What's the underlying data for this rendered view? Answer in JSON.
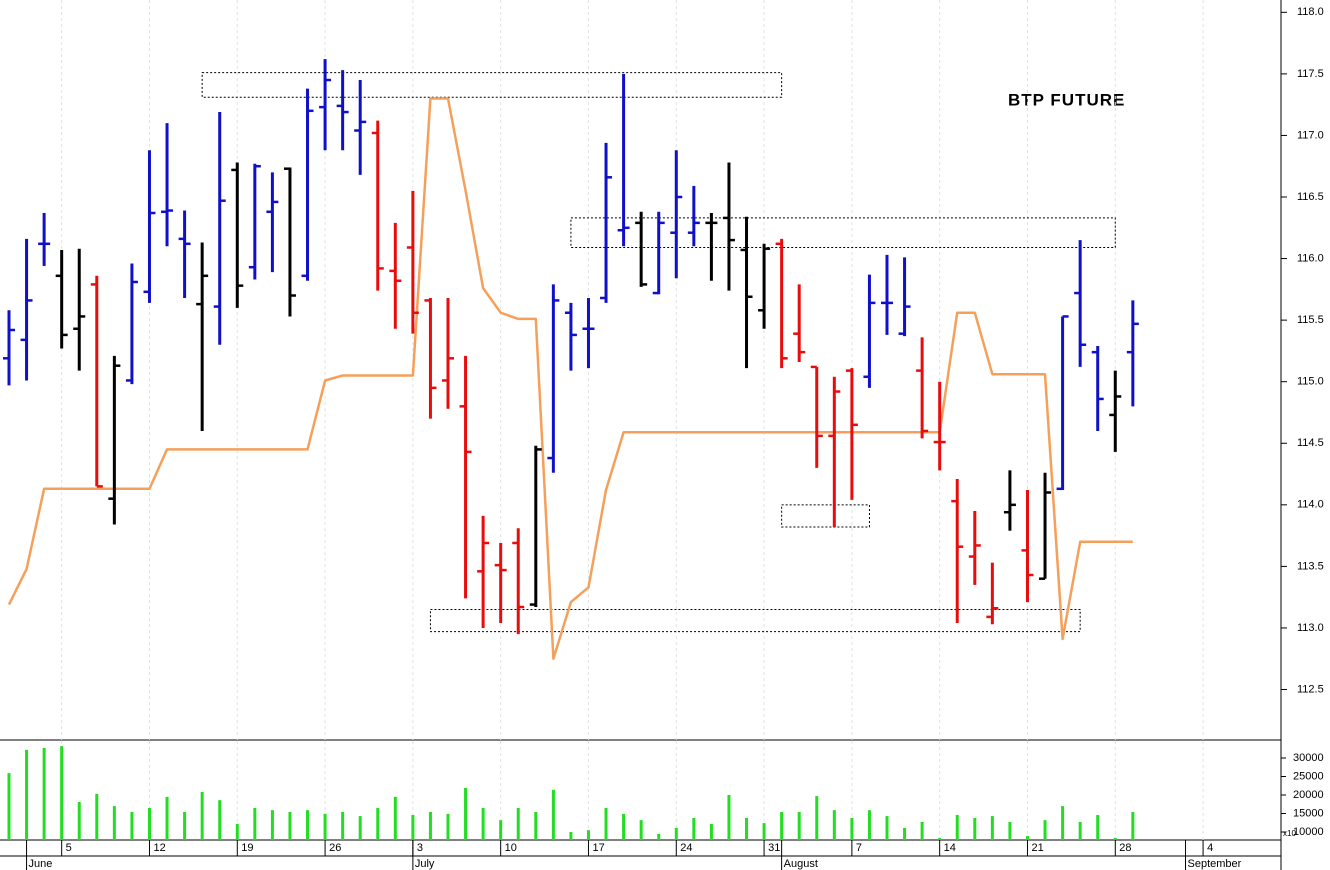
{
  "chart_data": {
    "type": "ohlc",
    "title": "BTP FUTURE",
    "categories": [
      null,
      null,
      null,
      "5",
      null,
      null,
      null,
      null,
      "12",
      null,
      null,
      null,
      null,
      "19",
      null,
      null,
      null,
      null,
      "26",
      null,
      null,
      null,
      null,
      "3",
      null,
      null,
      null,
      null,
      "10",
      null,
      null,
      null,
      null,
      "17",
      null,
      null,
      null,
      null,
      "24",
      null,
      null,
      null,
      null,
      "31",
      null,
      null,
      null,
      null,
      "7",
      null,
      null,
      null,
      null,
      "14",
      null,
      null,
      null,
      null,
      "21",
      null,
      null,
      null,
      null,
      "28",
      null,
      null,
      null,
      null,
      "4"
    ],
    "months": [
      null,
      "June",
      null,
      null,
      null,
      null,
      null,
      null,
      null,
      null,
      null,
      null,
      null,
      null,
      null,
      null,
      null,
      null,
      null,
      null,
      null,
      null,
      null,
      "July",
      null,
      null,
      null,
      null,
      null,
      null,
      null,
      null,
      null,
      null,
      null,
      null,
      null,
      null,
      null,
      null,
      null,
      null,
      null,
      null,
      "August",
      null,
      null,
      null,
      null,
      null,
      null,
      null,
      null,
      null,
      null,
      null,
      null,
      null,
      null,
      null,
      null,
      null,
      null,
      null,
      null,
      null,
      null,
      "September",
      null
    ],
    "ohlc": {
      "open": [
        115.19,
        115.34,
        116.12,
        115.86,
        115.43,
        115.79,
        114.05,
        115.01,
        115.73,
        116.38,
        116.16,
        115.63,
        115.61,
        116.72,
        115.93,
        116.38,
        116.73,
        115.86,
        117.23,
        117.24,
        117.04,
        117.02,
        115.9,
        116.09,
        115.66,
        115.01,
        114.8,
        113.46,
        113.51,
        113.69,
        113.19,
        114.38,
        115.56,
        115.43,
        115.68,
        116.23,
        116.29,
        115.72,
        116.21,
        116.21,
        116.29,
        116.33,
        116.07,
        115.58,
        116.12,
        115.39,
        115.12,
        114.56,
        115.09,
        115.04,
        115.64,
        115.39,
        115.09,
        114.51,
        114.03,
        113.58,
        113.09,
        113.94,
        113.63,
        113.4,
        114.13,
        115.72,
        115.24,
        114.73,
        115.24,
        null,
        null,
        null,
        null
      ],
      "high": [
        115.58,
        116.16,
        116.37,
        116.07,
        116.08,
        115.86,
        115.21,
        115.96,
        116.88,
        117.1,
        116.39,
        116.13,
        117.19,
        116.78,
        116.77,
        116.7,
        116.74,
        117.38,
        117.62,
        117.53,
        117.45,
        117.12,
        116.29,
        116.55,
        115.68,
        115.68,
        115.21,
        113.91,
        113.69,
        113.81,
        114.48,
        115.79,
        115.64,
        115.68,
        116.94,
        117.5,
        116.38,
        116.38,
        116.88,
        116.59,
        116.37,
        116.78,
        116.34,
        116.12,
        116.16,
        115.79,
        115.12,
        115.04,
        115.11,
        115.87,
        116.03,
        116.01,
        115.36,
        115.0,
        114.21,
        113.95,
        113.53,
        114.28,
        114.12,
        114.26,
        115.53,
        116.15,
        115.29,
        115.09,
        115.66,
        null,
        null,
        null,
        null
      ],
      "low": [
        114.97,
        115.01,
        115.94,
        115.27,
        115.09,
        114.15,
        113.84,
        114.98,
        115.64,
        116.1,
        115.68,
        114.6,
        115.3,
        115.6,
        115.83,
        115.89,
        115.53,
        115.82,
        116.88,
        116.88,
        116.68,
        115.74,
        115.43,
        115.39,
        114.7,
        114.78,
        113.24,
        113.0,
        113.04,
        112.95,
        113.17,
        114.26,
        115.09,
        115.11,
        115.64,
        116.1,
        115.77,
        115.71,
        115.84,
        116.1,
        115.82,
        115.74,
        115.11,
        115.43,
        115.11,
        115.16,
        114.3,
        113.82,
        114.04,
        114.95,
        115.38,
        115.37,
        114.54,
        114.28,
        113.04,
        113.35,
        113.03,
        113.79,
        113.21,
        113.4,
        114.12,
        115.12,
        114.6,
        114.43,
        114.8,
        null,
        null,
        null,
        null
      ],
      "close": [
        115.42,
        115.66,
        116.12,
        115.38,
        115.53,
        114.15,
        115.13,
        115.81,
        116.37,
        116.39,
        116.12,
        115.86,
        116.47,
        115.78,
        116.75,
        116.46,
        115.7,
        117.2,
        117.45,
        117.19,
        117.11,
        115.92,
        115.82,
        115.56,
        114.95,
        115.19,
        114.43,
        113.69,
        113.47,
        113.17,
        114.45,
        115.66,
        115.38,
        115.43,
        116.66,
        116.25,
        115.79,
        116.29,
        116.5,
        116.29,
        116.29,
        116.15,
        115.69,
        116.08,
        115.19,
        115.24,
        114.56,
        114.92,
        114.65,
        115.64,
        115.64,
        115.61,
        114.6,
        114.51,
        113.66,
        113.67,
        113.16,
        114.0,
        113.43,
        114.1,
        115.53,
        115.3,
        114.86,
        114.88,
        115.47,
        null,
        null,
        null,
        null
      ],
      "colors": [
        "#1010c8",
        "#1010c8",
        "#1010c8",
        "#000000",
        "#000000",
        "#e80c0c",
        "#000000",
        "#1010c8",
        "#1010c8",
        "#1010c8",
        "#1010c8",
        "#000000",
        "#1010c8",
        "#000000",
        "#1010c8",
        "#1010c8",
        "#000000",
        "#1010c8",
        "#1010c8",
        "#1010c8",
        "#1010c8",
        "#e80c0c",
        "#e80c0c",
        "#e80c0c",
        "#e80c0c",
        "#e80c0c",
        "#e80c0c",
        "#e80c0c",
        "#e80c0c",
        "#e80c0c",
        "#000000",
        "#1010c8",
        "#1010c8",
        "#1010c8",
        "#1010c8",
        "#1010c8",
        "#000000",
        "#1010c8",
        "#1010c8",
        "#1010c8",
        "#000000",
        "#000000",
        "#000000",
        "#000000",
        "#e80c0c",
        "#e80c0c",
        "#e80c0c",
        "#e80c0c",
        "#e80c0c",
        "#1010c8",
        "#1010c8",
        "#1010c8",
        "#e80c0c",
        "#e80c0c",
        "#e80c0c",
        "#e80c0c",
        "#e80c0c",
        "#000000",
        "#e80c0c",
        "#000000",
        "#1010c8",
        "#1010c8",
        "#1010c8",
        "#000000",
        "#1010c8",
        null,
        null,
        null,
        null
      ]
    },
    "line": {
      "color": "#f5a05a",
      "values": [
        113.19,
        113.48,
        114.13,
        114.13,
        114.13,
        114.13,
        114.13,
        114.13,
        114.13,
        114.45,
        114.45,
        114.45,
        114.45,
        114.45,
        114.45,
        114.45,
        114.45,
        114.45,
        115.01,
        115.05,
        115.05,
        115.05,
        115.05,
        115.05,
        117.3,
        117.3,
        116.55,
        115.76,
        115.56,
        115.51,
        115.51,
        112.75,
        113.21,
        113.33,
        114.12,
        114.59,
        114.59,
        114.59,
        114.59,
        114.59,
        114.59,
        114.59,
        114.59,
        114.59,
        114.59,
        114.59,
        114.59,
        114.59,
        114.59,
        114.59,
        114.59,
        114.59,
        114.59,
        114.59,
        115.56,
        115.56,
        115.06,
        115.06,
        115.06,
        115.06,
        112.91,
        113.7,
        113.7,
        113.7,
        113.7,
        null,
        null,
        null,
        null
      ]
    },
    "zones": [
      {
        "x": [
          11,
          44
        ],
        "y": [
          117.31,
          117.51
        ]
      },
      {
        "x": [
          32,
          63
        ],
        "y": [
          116.09,
          116.33
        ]
      },
      {
        "x": [
          44,
          49
        ],
        "y": [
          113.82,
          114.0
        ]
      },
      {
        "x": [
          24,
          61
        ],
        "y": [
          112.97,
          113.15
        ]
      }
    ],
    "ylim": [
      112.09,
      118.1
    ],
    "yticks": [
      112.5,
      {
        "value": 113,
        "label": "113.0"
      },
      113.5,
      {
        "value": 114,
        "label": "114.0"
      },
      114.5,
      {
        "value": 115,
        "label": "115.0"
      },
      115.5,
      {
        "value": 116,
        "label": "116.0"
      },
      116.5,
      {
        "value": 117,
        "label": "117.0"
      },
      117.5,
      {
        "value": 118,
        "label": "118.0"
      }
    ],
    "grid": true,
    "volume": {
      "color": "#22dd22",
      "values": [
        25900,
        32200,
        32700,
        33200,
        18100,
        20300,
        17000,
        15400,
        16500,
        19500,
        15400,
        20800,
        18600,
        12200,
        16500,
        15900,
        15400,
        15900,
        14900,
        15400,
        14300,
        16500,
        19500,
        14600,
        15400,
        14900,
        21900,
        16500,
        13200,
        16500,
        15400,
        21400,
        10000,
        10500,
        16500,
        14900,
        13200,
        9500,
        11100,
        13800,
        12200,
        20000,
        13800,
        12400,
        15400,
        15400,
        19700,
        15900,
        13800,
        15900,
        14300,
        11100,
        12700,
        8400,
        14600,
        13800,
        14300,
        12700,
        8900,
        13200,
        17000,
        12700,
        14600,
        8400,
        15400,
        null,
        null,
        null,
        null
      ],
      "ylim": [
        7838,
        34324
      ],
      "yticks": [
        10000,
        15000,
        20000,
        25000,
        30000
      ],
      "unit_label": "x10"
    }
  }
}
